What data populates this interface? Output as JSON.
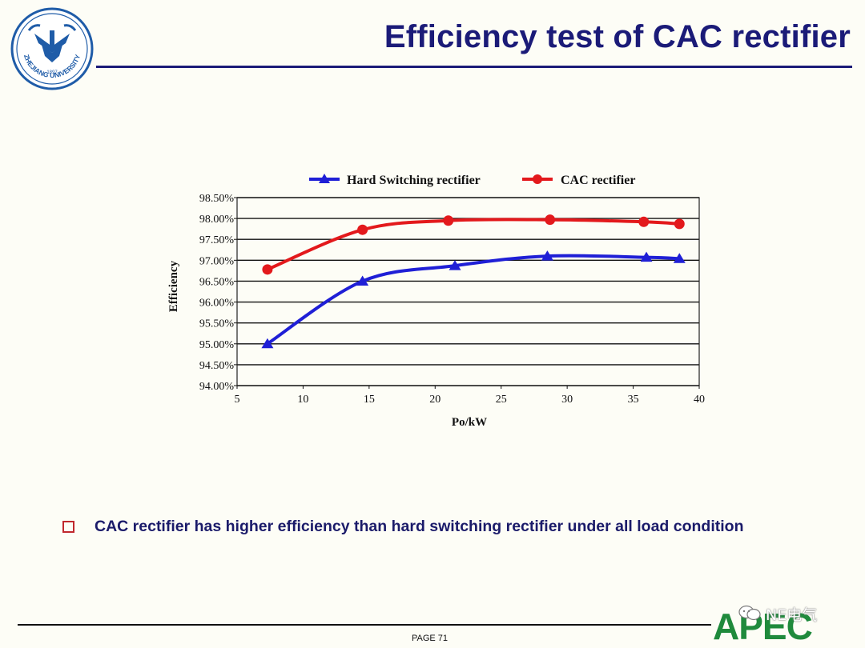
{
  "slide": {
    "title": "Efficiency test of CAC rectifier",
    "bullet": "CAC rectifier has higher efficiency than hard switching rectifier under all load condition",
    "page_number": "PAGE 71",
    "apec_logo": "APEC",
    "wechat_mark": "NE电气"
  },
  "university_logo": {
    "text": "ZHEJIANG UNIVERSITY",
    "year": "1897",
    "colors": {
      "ring": "#1f5ca8",
      "fill": "#ffffff"
    }
  },
  "colors": {
    "title": "#1b1b78",
    "hard_series": "#1f1fd6",
    "cac_series": "#e3191c",
    "bullet_border": "#c0282d",
    "apec_green": "#1f8a3c"
  },
  "chart_data": {
    "type": "line",
    "title": "",
    "xlabel": "Po/kW",
    "ylabel": "Efficiency",
    "xlim": [
      5,
      40
    ],
    "ylim": [
      94.0,
      98.5
    ],
    "x_ticks": [
      5,
      10,
      15,
      20,
      25,
      30,
      35,
      40
    ],
    "x_tick_labels": [
      "5",
      "10",
      "15",
      "20",
      "25",
      "30",
      "35",
      "40"
    ],
    "y_ticks": [
      94.0,
      94.5,
      95.0,
      95.5,
      96.0,
      96.5,
      97.0,
      97.5,
      98.0,
      98.5
    ],
    "y_tick_labels": [
      "94.00%",
      "94.50%",
      "95.00%",
      "95.50%",
      "96.00%",
      "96.50%",
      "97.00%",
      "97.50%",
      "98.00%",
      "98.50%"
    ],
    "grid": "horizontal",
    "legend_position": "top",
    "series": [
      {
        "name": "Hard Switching rectifier",
        "marker": "triangle",
        "color": "#1f1fd6",
        "x": [
          7.3,
          14.5,
          21.5,
          28.5,
          36.0,
          38.5
        ],
        "y": [
          95.0,
          96.5,
          96.87,
          97.1,
          97.07,
          97.04
        ]
      },
      {
        "name": "CAC rectifier",
        "marker": "circle",
        "color": "#e3191c",
        "x": [
          7.3,
          14.5,
          21.0,
          28.7,
          35.8,
          38.5
        ],
        "y": [
          96.78,
          97.73,
          97.95,
          97.97,
          97.92,
          97.87
        ]
      }
    ]
  }
}
